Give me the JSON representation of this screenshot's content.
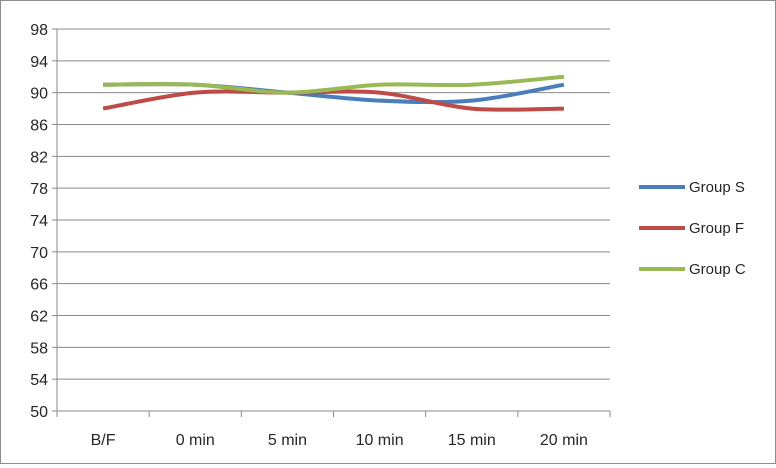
{
  "chart_data": {
    "type": "line",
    "title": "",
    "xlabel": "",
    "ylabel": "",
    "categories": [
      "B/F",
      "0 min",
      "5 min",
      "10 min",
      "15 min",
      "20 min"
    ],
    "ylim": [
      50,
      98
    ],
    "yticks": [
      50,
      54,
      58,
      62,
      66,
      70,
      74,
      78,
      82,
      86,
      90,
      94,
      98
    ],
    "grid": true,
    "legend_position": "right",
    "series": [
      {
        "name": "Group S",
        "color": "#4a7ebb",
        "values": [
          91,
          91,
          90,
          89,
          89,
          91
        ]
      },
      {
        "name": "Group F",
        "color": "#be4b48",
        "values": [
          88,
          90,
          90,
          90,
          88,
          88
        ]
      },
      {
        "name": "Group C",
        "color": "#98b954",
        "values": [
          91,
          91,
          90,
          91,
          91,
          92
        ]
      }
    ]
  }
}
